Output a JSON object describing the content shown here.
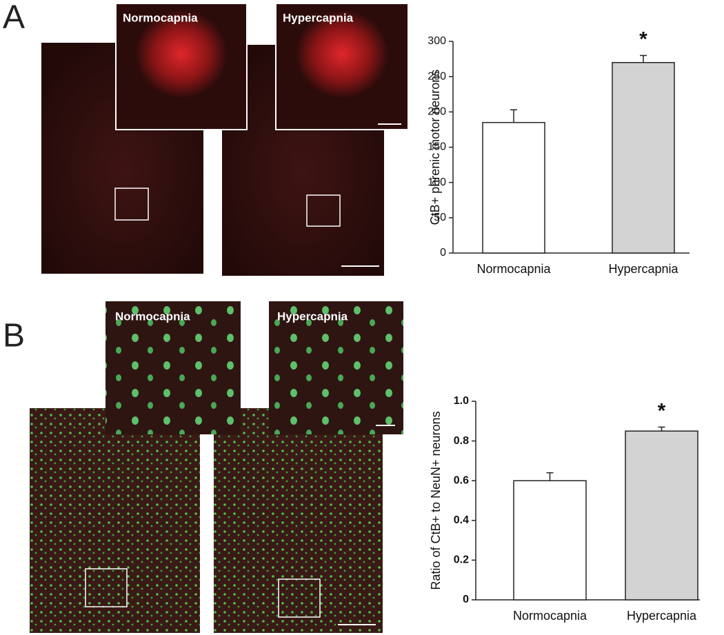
{
  "panels": [
    {
      "label": "A",
      "images": [
        "Normocapnia",
        "Hypercapnia"
      ]
    },
    {
      "label": "B",
      "images": [
        "Normocapnia",
        "Hypercapnia"
      ]
    }
  ],
  "chart_data": [
    {
      "type": "bar",
      "ylabel": "CtB+ phrenic motor neurons",
      "categories": [
        "Normocapnia",
        "Hypercapnia"
      ],
      "values": [
        185,
        270
      ],
      "errors": [
        18,
        10
      ],
      "colors": [
        "#ffffff",
        "#d3d3d3"
      ],
      "ylim": [
        0,
        300
      ],
      "yticks": [
        0,
        50,
        100,
        150,
        200,
        250,
        300
      ],
      "annotation": {
        "text": "*",
        "category": "Hypercapnia"
      }
    },
    {
      "type": "bar",
      "ylabel": "Ratio of CtB+ to NeuN+ neurons",
      "categories": [
        "Normocapnia",
        "Hypercapnia"
      ],
      "values": [
        0.6,
        0.85
      ],
      "errors": [
        0.04,
        0.02
      ],
      "colors": [
        "#ffffff",
        "#d3d3d3"
      ],
      "ylim": [
        0,
        1.0
      ],
      "yticks": [
        0,
        0.2,
        0.4,
        0.6,
        0.8,
        {
          "value": 1.0,
          "label": "1.0"
        }
      ],
      "annotation": {
        "text": "*",
        "category": "Hypercapnia"
      }
    }
  ]
}
